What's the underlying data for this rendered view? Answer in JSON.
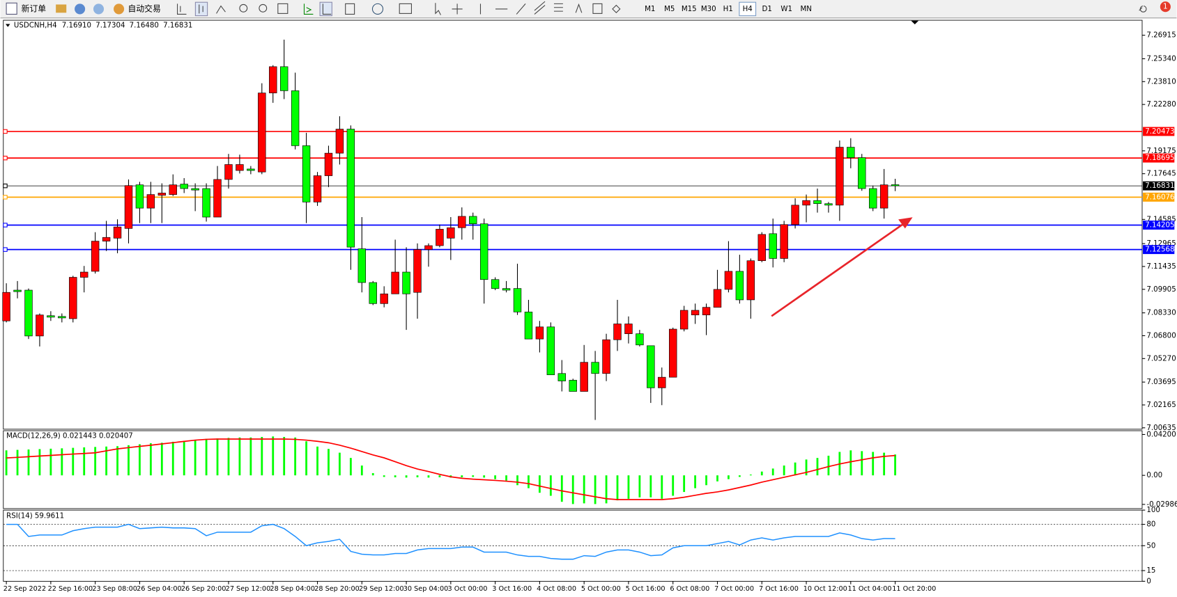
{
  "toolbar": {
    "new_order": "新订单",
    "auto_trading": "自动交易",
    "timeframes": [
      "M1",
      "M5",
      "M15",
      "M30",
      "H1",
      "H4",
      "D1",
      "W1",
      "MN"
    ],
    "selected_timeframe": 5,
    "notifications": 1
  },
  "chart_data": [
    {
      "type": "candlestick",
      "header": {
        "symbol": "USDCNH,H4",
        "values": [
          {
            "value": 7.1691,
            "label": "7.16910"
          },
          {
            "value": 7.17304,
            "label": "7.17304"
          },
          {
            "value": 7.1648,
            "label": "7.16480"
          },
          {
            "value": 7.16831,
            "label": "7.16831"
          }
        ]
      },
      "categories": [
        "22 Sep 2022",
        null,
        null,
        null,
        "22 Sep 16:00",
        null,
        null,
        null,
        "23 Sep 08:00",
        null,
        null,
        null,
        "26 Sep 04:00",
        null,
        null,
        null,
        "26 Sep 20:00",
        null,
        null,
        null,
        "27 Sep 12:00",
        null,
        null,
        null,
        "28 Sep 04:00",
        null,
        null,
        null,
        "28 Sep 20:00",
        null,
        null,
        null,
        "29 Sep 12:00",
        null,
        null,
        null,
        "30 Sep 04:00",
        null,
        null,
        null,
        "3 Oct 00:00",
        null,
        null,
        null,
        "3 Oct 16:00",
        null,
        null,
        null,
        "4 Oct 08:00",
        null,
        null,
        null,
        "5 Oct 00:00",
        null,
        null,
        null,
        "5 Oct 16:00",
        null,
        null,
        null,
        "6 Oct 08:00",
        null,
        null,
        null,
        "7 Oct 00:00",
        null,
        null,
        null,
        "7 Oct 16:00",
        null,
        null,
        null,
        "10 Oct 12:00",
        null,
        null,
        null,
        "11 Oct 04:00",
        null,
        null,
        null,
        "11 Oct 20:00"
      ],
      "open": [
        7.0779,
        7.0985,
        7.0985,
        7.0678,
        7.0814,
        7.0809,
        7.0794,
        7.1071,
        7.1111,
        7.1313,
        7.1333,
        7.1398,
        7.169,
        7.1534,
        7.162,
        7.1625,
        7.1695,
        7.1665,
        7.1665,
        7.1474,
        7.1726,
        7.1786,
        7.1796,
        7.1776,
        7.2305,
        7.2481,
        7.232,
        7.1952,
        7.1575,
        7.1751,
        7.1902,
        7.2063,
        7.1262,
        7.1036,
        7.0895,
        7.096,
        7.1106,
        7.097,
        7.1257,
        7.1283,
        7.1333,
        7.1403,
        7.1479,
        7.1429,
        7.1056,
        7.0996,
        7.0996,
        7.0839,
        7.0658,
        7.0739,
        7.0427,
        7.0382,
        7.0307,
        7.0502,
        7.0427,
        7.0653,
        7.0693,
        7.0693,
        7.0613,
        7.0331,
        7.0402,
        7.0724,
        7.0819,
        7.0819,
        7.087,
        7.099,
        7.1111,
        7.092,
        7.1182,
        7.1363,
        7.1197,
        7.1424,
        7.1554,
        7.1585,
        7.1564,
        7.1554,
        7.1942,
        7.1872,
        7.1665,
        7.1534,
        7.1691
      ],
      "high": [
        7.1031,
        7.1046,
        7.0996,
        7.0829,
        7.0844,
        7.0829,
        7.1081,
        7.1147,
        7.1373,
        7.1449,
        7.1459,
        7.1726,
        7.171,
        7.171,
        7.17,
        7.176,
        7.1735,
        7.17,
        7.17,
        7.1816,
        7.1897,
        7.1892,
        7.1816,
        7.237,
        7.2491,
        7.2662,
        7.2441,
        7.2038,
        7.1776,
        7.1952,
        7.2149,
        7.2088,
        7.1474,
        7.1046,
        7.1011,
        7.1323,
        7.1272,
        7.1298,
        7.1298,
        7.1424,
        7.1474,
        7.1539,
        7.1504,
        7.1464,
        7.1071,
        7.1046,
        7.1162,
        7.092,
        7.0779,
        7.0769,
        7.0517,
        7.0392,
        7.0618,
        7.0578,
        7.0693,
        7.092,
        7.0809,
        7.0719,
        7.0613,
        7.0467,
        7.0734,
        7.088,
        7.0895,
        7.0895,
        7.1121,
        7.1313,
        7.1222,
        7.1197,
        7.1373,
        7.1464,
        7.1449,
        7.16,
        7.1625,
        7.1665,
        7.1575,
        7.1987,
        7.2002,
        7.1897,
        7.1685,
        7.1796,
        7.17304
      ],
      "low": [
        7.0769,
        7.093,
        7.0658,
        7.0608,
        7.0779,
        7.0769,
        7.0769,
        7.097,
        7.1096,
        7.1247,
        7.1232,
        7.1298,
        7.1434,
        7.1434,
        7.1434,
        7.1615,
        7.1635,
        7.1514,
        7.1444,
        7.1474,
        7.1665,
        7.1766,
        7.1761,
        7.1761,
        7.2239,
        7.2264,
        7.1927,
        7.1434,
        7.1549,
        7.1675,
        7.1826,
        7.1121,
        7.097,
        7.0885,
        7.087,
        7.096,
        7.0719,
        7.0794,
        7.1142,
        7.1272,
        7.1187,
        7.1323,
        7.1323,
        7.0895,
        7.0985,
        7.097,
        7.0819,
        7.0658,
        7.0568,
        7.0418,
        7.0307,
        7.0307,
        7.0307,
        7.0116,
        7.0376,
        7.0578,
        7.0628,
        7.0608,
        7.023,
        7.0215,
        7.0402,
        7.0709,
        7.0759,
        7.0684,
        7.087,
        7.097,
        7.0895,
        7.0794,
        7.1172,
        7.1137,
        7.1172,
        7.1398,
        7.1439,
        7.1504,
        7.1504,
        7.1449,
        7.1801,
        7.165,
        7.1514,
        7.1464,
        7.1648
      ],
      "close": [
        7.097,
        7.0975,
        7.0678,
        7.0819,
        7.0804,
        7.0799,
        7.1071,
        7.1106,
        7.1313,
        7.1338,
        7.1408,
        7.1685,
        7.1534,
        7.1625,
        7.1635,
        7.169,
        7.1665,
        7.1655,
        7.1474,
        7.1726,
        7.1826,
        7.1826,
        7.1786,
        7.2305,
        7.2481,
        7.232,
        7.1952,
        7.1575,
        7.1751,
        7.1902,
        7.2063,
        7.1273,
        7.1036,
        7.0895,
        7.096,
        7.1106,
        7.096,
        7.1257,
        7.1283,
        7.1393,
        7.1403,
        7.1479,
        7.1429,
        7.1056,
        7.0996,
        7.0985,
        7.0839,
        7.0658,
        7.0739,
        7.0418,
        7.0377,
        7.0307,
        7.0502,
        7.0427,
        7.0653,
        7.0759,
        7.0759,
        7.0618,
        7.0331,
        7.0402,
        7.0724,
        7.085,
        7.085,
        7.087,
        7.099,
        7.1111,
        7.092,
        7.1182,
        7.1358,
        7.1197,
        7.1424,
        7.1554,
        7.1585,
        7.1564,
        7.1554,
        7.1942,
        7.1872,
        7.1665,
        7.1534,
        7.169,
        7.16831
      ],
      "up_color": "#ff0000",
      "down_color": "#00ff00",
      "ylim": [
        7.0054,
        7.2792
      ],
      "yticks": [
        7.26915,
        {
          "value": 7.2534,
          "label": "7.25340"
        },
        {
          "value": 7.2381,
          "label": "7.23810"
        },
        {
          "value": 7.2228,
          "label": "7.22280"
        },
        7.19175,
        7.17645,
        7.14585,
        7.12965,
        7.11435,
        7.09905,
        {
          "value": 7.0833,
          "label": "7.08330"
        },
        {
          "value": 7.068,
          "label": "7.06800"
        },
        {
          "value": 7.0527,
          "label": "7.05270"
        },
        7.03695,
        7.02165,
        7.00635
      ],
      "hlines": [
        {
          "value": 7.20473,
          "color": "#ff0000"
        },
        {
          "value": 7.18695,
          "color": "#ff0000"
        },
        {
          "value": 7.16831,
          "color": "#000000"
        },
        {
          "value": 7.16076,
          "color": "#ffa500"
        },
        {
          "value": 7.14205,
          "color": "#0000ff"
        },
        {
          "value": 7.12568,
          "color": "#0000ff"
        }
      ]
    },
    {
      "type": "macd",
      "label": "MACD(12,26,9) 0.021443 0.020407",
      "series": [
        {
          "type": "bar",
          "color": "#00ff00",
          "values": [
            0.0257,
            0.0262,
            0.0266,
            0.027,
            0.0274,
            0.0278,
            0.0283,
            0.0288,
            0.0292,
            0.0296,
            0.03,
            0.031,
            0.032,
            0.033,
            0.0335,
            0.0345,
            0.0355,
            0.0365,
            0.0375,
            0.038,
            0.0385,
            0.0389,
            0.0389,
            0.0395,
            0.04,
            0.0395,
            0.0389,
            0.035,
            0.0296,
            0.0272,
            0.0233,
            0.0179,
            0.0101,
            0.0023,
            -0.0016,
            -0.002,
            -0.0023,
            -0.002,
            -0.0023,
            -0.002,
            -0.0023,
            -0.002,
            -0.0016,
            -0.0023,
            -0.0039,
            -0.0054,
            -0.0101,
            -0.0132,
            -0.0179,
            -0.021,
            -0.0272,
            -0.0295,
            -0.0288,
            -0.0295,
            -0.0288,
            -0.0257,
            -0.0241,
            -0.0226,
            -0.0226,
            -0.0241,
            -0.021,
            -0.0171,
            -0.0132,
            -0.0101,
            -0.0062,
            -0.0039,
            -0.0016,
            0.0008,
            0.0039,
            0.007,
            0.0101,
            0.0132,
            0.0163,
            0.0179,
            0.0202,
            0.0241,
            0.0257,
            0.0249,
            0.0241,
            0.0233,
            0.021443
          ]
        },
        {
          "type": "line",
          "color": "#ff0000",
          "values": [
            0.0179,
            0.0185,
            0.0192,
            0.0199,
            0.0205,
            0.0212,
            0.0219,
            0.0225,
            0.0232,
            0.0252,
            0.0272,
            0.0285,
            0.0298,
            0.031,
            0.0323,
            0.0336,
            0.0349,
            0.0362,
            0.037,
            0.0373,
            0.0373,
            0.0373,
            0.0373,
            0.0373,
            0.0373,
            0.0373,
            0.037,
            0.0362,
            0.035,
            0.0335,
            0.031,
            0.028,
            0.0245,
            0.021,
            0.018,
            0.014,
            0.01,
            0.0065,
            0.0039,
            0.001,
            -0.0015,
            -0.003,
            -0.0039,
            -0.0045,
            -0.0052,
            -0.006,
            -0.007,
            -0.0085,
            -0.011,
            -0.0135,
            -0.016,
            -0.018,
            -0.02,
            -0.022,
            -0.024,
            -0.0249,
            -0.0249,
            -0.0249,
            -0.0249,
            -0.0249,
            -0.024,
            -0.0225,
            -0.0205,
            -0.0185,
            -0.017,
            -0.015,
            -0.0125,
            -0.01,
            -0.007,
            -0.0045,
            -0.002,
            0.0005,
            0.003,
            0.006,
            0.009,
            0.0117,
            0.014,
            0.016,
            0.018,
            0.0195,
            0.020407
          ]
        }
      ],
      "ylim": [
        -0.0342,
        0.0459
      ],
      "yticks": [
        0.042001,
        {
          "value": 0,
          "label": "0.00"
        },
        -0.029864
      ]
    },
    {
      "type": "line",
      "label": "RSI(14) 59.9611",
      "series": [
        {
          "color": "#1e90ff",
          "values": [
            80,
            80,
            63,
            65,
            65,
            65,
            71,
            74,
            76,
            76,
            76,
            80,
            74,
            75,
            76,
            75,
            75,
            74,
            64,
            69,
            69,
            69,
            69,
            78,
            80,
            74,
            63,
            50,
            54,
            56,
            59,
            42,
            38,
            37,
            37,
            39,
            39,
            44,
            46,
            46,
            46,
            48,
            48,
            41,
            41,
            41,
            37,
            35,
            35,
            32,
            31,
            31,
            36,
            35,
            41,
            44,
            44,
            41,
            36,
            37,
            47,
            50,
            50,
            50,
            53,
            56,
            51,
            58,
            61,
            58,
            61,
            63,
            63,
            63,
            63,
            68,
            65,
            60,
            58,
            60,
            59.9611
          ]
        }
      ],
      "ylim": [
        0,
        100
      ],
      "yticks": [
        100,
        80,
        50,
        15,
        0
      ],
      "levels": [
        80,
        50,
        15
      ]
    }
  ]
}
